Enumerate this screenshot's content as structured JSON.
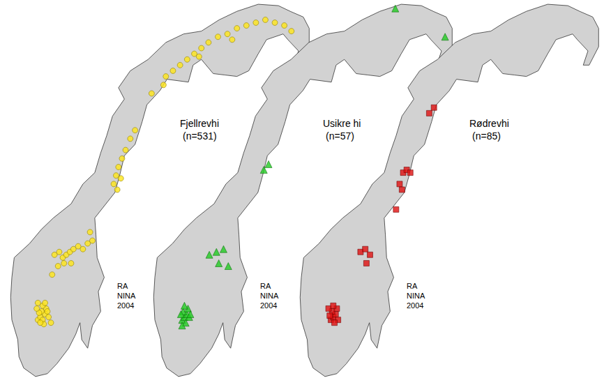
{
  "chart_data": [
    {
      "type": "scatter",
      "title": "Fjellrevhi",
      "subtitle": "(n=531)",
      "annotation": [
        "RA",
        "NINA",
        "2004"
      ],
      "color": "#ffe619",
      "marker": "circle",
      "tick_labels": false,
      "grid": false,
      "xlim": [
        4,
        30.2
      ],
      "ylim": [
        57.7,
        71.3
      ],
      "x": [
        7.2,
        7.4,
        7.6,
        7.8,
        7.5,
        7.3,
        7.9,
        7.6,
        7.1,
        8.1,
        7.7,
        7.4,
        8.0,
        7.2,
        7.8,
        8.3,
        8.6,
        9.0,
        9.3,
        9.6,
        9.9,
        10.2,
        10.6,
        11.0,
        11.4,
        11.8,
        9.4,
        10.0,
        8.9,
        11.6,
        8.4,
        13.6,
        13.8,
        14.0,
        14.3,
        14.6,
        15.0,
        15.4,
        13.9,
        14.2,
        16.8,
        17.8,
        18.6,
        19.2,
        19.8,
        20.4,
        21.0,
        21.6,
        22.4,
        23.2,
        24.0,
        24.8,
        25.6,
        26.4,
        27.2,
        28.0,
        28.6,
        18.0,
        20.8,
        23.6
      ],
      "y": [
        60.0,
        60.1,
        60.0,
        60.2,
        60.3,
        60.25,
        60.4,
        60.5,
        60.4,
        60.1,
        59.85,
        59.9,
        60.3,
        60.6,
        60.6,
        59.9,
        62.3,
        62.4,
        62.2,
        62.3,
        62.4,
        62.5,
        62.6,
        62.5,
        62.7,
        62.8,
        62.0,
        62.0,
        61.9,
        63.1,
        61.6,
        64.8,
        65.1,
        65.4,
        65.7,
        66.0,
        66.4,
        66.7,
        64.6,
        65.0,
        68.0,
        68.3,
        68.8,
        69.0,
        69.2,
        69.4,
        69.6,
        69.8,
        70.0,
        70.1,
        70.3,
        70.4,
        70.5,
        70.6,
        70.5,
        70.4,
        70.2,
        68.6,
        69.3,
        69.9
      ]
    },
    {
      "type": "scatter",
      "title": "Usikre hi",
      "subtitle": "(n=57)",
      "annotation": [
        "RA",
        "NINA",
        "2004"
      ],
      "color": "#22cc22",
      "marker": "triangle",
      "tick_labels": false,
      "grid": false,
      "xlim": [
        4,
        30.2
      ],
      "ylim": [
        57.7,
        71.3
      ],
      "x": [
        7.3,
        7.5,
        7.7,
        7.4,
        7.9,
        7.6,
        7.2,
        7.8,
        8.0,
        7.5,
        7.3,
        9.6,
        10.2,
        10.8,
        10.4,
        11.2,
        14.2,
        14.6,
        25.3,
        29.5
      ],
      "y": [
        60.0,
        60.1,
        60.2,
        60.3,
        60.1,
        59.9,
        60.2,
        60.4,
        60.2,
        60.5,
        59.8,
        62.3,
        62.4,
        62.5,
        62.0,
        61.9,
        65.3,
        65.5,
        71.0,
        70.0
      ]
    },
    {
      "type": "scatter",
      "title": "Rødrevhi",
      "subtitle": "(n=85)",
      "annotation": [
        "RA",
        "NINA",
        "2004"
      ],
      "color": "#e01010",
      "marker": "square",
      "tick_labels": false,
      "grid": false,
      "xlim": [
        4,
        30.2
      ],
      "ylim": [
        57.7,
        71.3
      ],
      "x": [
        7.5,
        7.7,
        7.9,
        7.6,
        8.1,
        7.4,
        7.8,
        8.0,
        7.3,
        7.7,
        10.0,
        10.4,
        10.8,
        10.5,
        13.0,
        13.3,
        13.6,
        13.9,
        14.2,
        13.5,
        15.8,
        16.2
      ],
      "y": [
        60.0,
        60.1,
        60.2,
        60.3,
        60.0,
        60.15,
        59.9,
        60.4,
        60.4,
        60.5,
        62.4,
        62.5,
        62.3,
        62.0,
        63.9,
        64.8,
        65.2,
        65.3,
        65.2,
        64.6,
        67.3,
        67.5
      ]
    }
  ]
}
